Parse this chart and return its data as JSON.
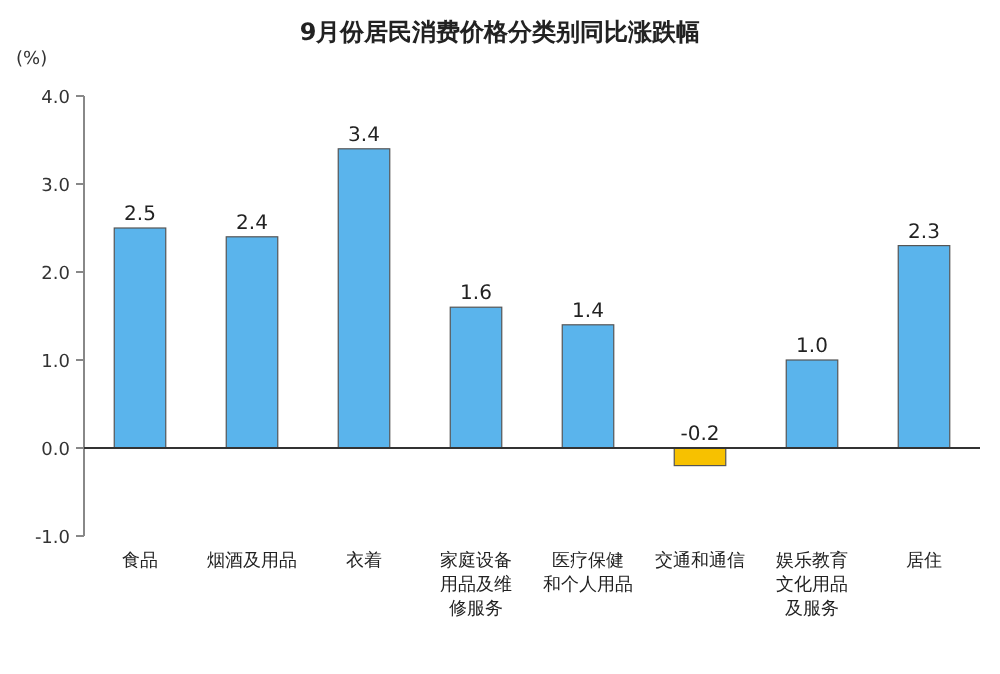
{
  "chart_data": {
    "type": "bar",
    "title": "9月份居民消费价格分类别同比涨跌幅",
    "ylabel": "(%)",
    "categories": [
      "食品",
      "烟酒及用品",
      "衣着",
      "家庭设备用品及维修服务",
      "医疗保健和个人用品",
      "交通和通信",
      "娱乐教育文化用品及服务",
      "居住"
    ],
    "values": [
      2.5,
      2.4,
      3.4,
      1.6,
      1.4,
      -0.2,
      1.0,
      2.3
    ],
    "colors": [
      "#5ab4ec",
      "#5ab4ec",
      "#5ab4ec",
      "#5ab4ec",
      "#5ab4ec",
      "#f7c100",
      "#5ab4ec",
      "#5ab4ec"
    ],
    "value_labels": [
      "2.5",
      "2.4",
      "3.4",
      "1.6",
      "1.4",
      "-0.2",
      "1.0",
      "2.3"
    ],
    "ylim": [
      -1,
      4
    ],
    "yticks": [
      {
        "value": -1,
        "label": "-1.0"
      },
      {
        "value": 0,
        "label": "0.0"
      },
      {
        "value": 1,
        "label": "1.0"
      },
      {
        "value": 2,
        "label": "2.0"
      },
      {
        "value": 3,
        "label": "3.0"
      },
      {
        "value": 4,
        "label": "4.0"
      }
    ],
    "ref_lines": [
      {
        "axis": "y",
        "value": 0,
        "color": "#333333"
      }
    ],
    "grid": false
  }
}
